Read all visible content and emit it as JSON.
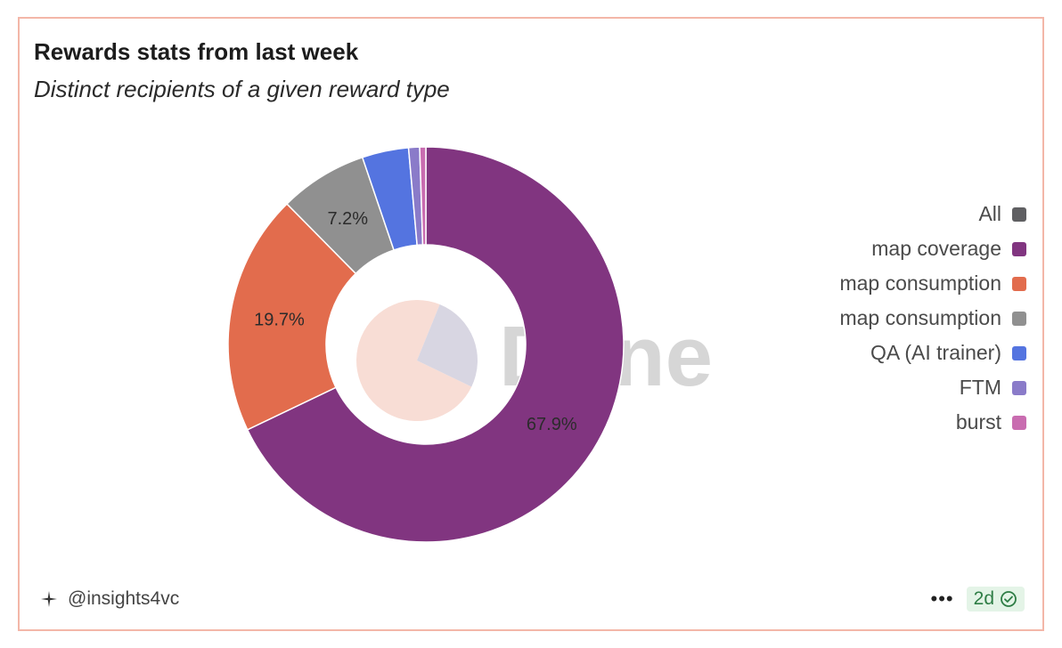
{
  "header": {
    "title": "Rewards stats from last week",
    "subtitle": "Distinct recipients of a given reward type"
  },
  "watermark": "Dune",
  "chart_data": {
    "type": "pie",
    "variant": "donut",
    "series": [
      {
        "name": "map coverage",
        "value": 67.9,
        "label": "67.9%",
        "color": "#813580"
      },
      {
        "name": "map consumption",
        "value": 19.7,
        "label": "19.7%",
        "color": "#e26c4d"
      },
      {
        "name": "map consumption",
        "value": 7.2,
        "label": "7.2%",
        "color": "#909090"
      },
      {
        "name": "QA (AI trainer)",
        "value": 3.8,
        "label": "",
        "color": "#5474e0"
      },
      {
        "name": "FTM",
        "value": 0.9,
        "label": "",
        "color": "#8a7bc9"
      },
      {
        "name": "burst",
        "value": 0.5,
        "label": "",
        "color": "#c96cb0"
      }
    ],
    "legend_placement": "right",
    "center_inset": [
      {
        "value": 74,
        "color": "#f8ddd5"
      },
      {
        "value": 26,
        "color": "#d8d6e2"
      }
    ]
  },
  "legend": {
    "items": [
      {
        "label": "All",
        "color": "#5f5f62"
      },
      {
        "label": "map coverage",
        "color": "#813580"
      },
      {
        "label": "map consumption",
        "color": "#e26c4d"
      },
      {
        "label": "map consumption",
        "color": "#909090"
      },
      {
        "label": "QA (AI trainer)",
        "color": "#5474e0"
      },
      {
        "label": "FTM",
        "color": "#8a7bc9"
      },
      {
        "label": "burst",
        "color": "#c96cb0"
      }
    ]
  },
  "footer": {
    "author": "@insights4vc",
    "more": "•••",
    "age": "2d",
    "icons": {
      "author": "sparkle-icon",
      "more": "more-icon",
      "status": "check-circle-icon"
    }
  }
}
